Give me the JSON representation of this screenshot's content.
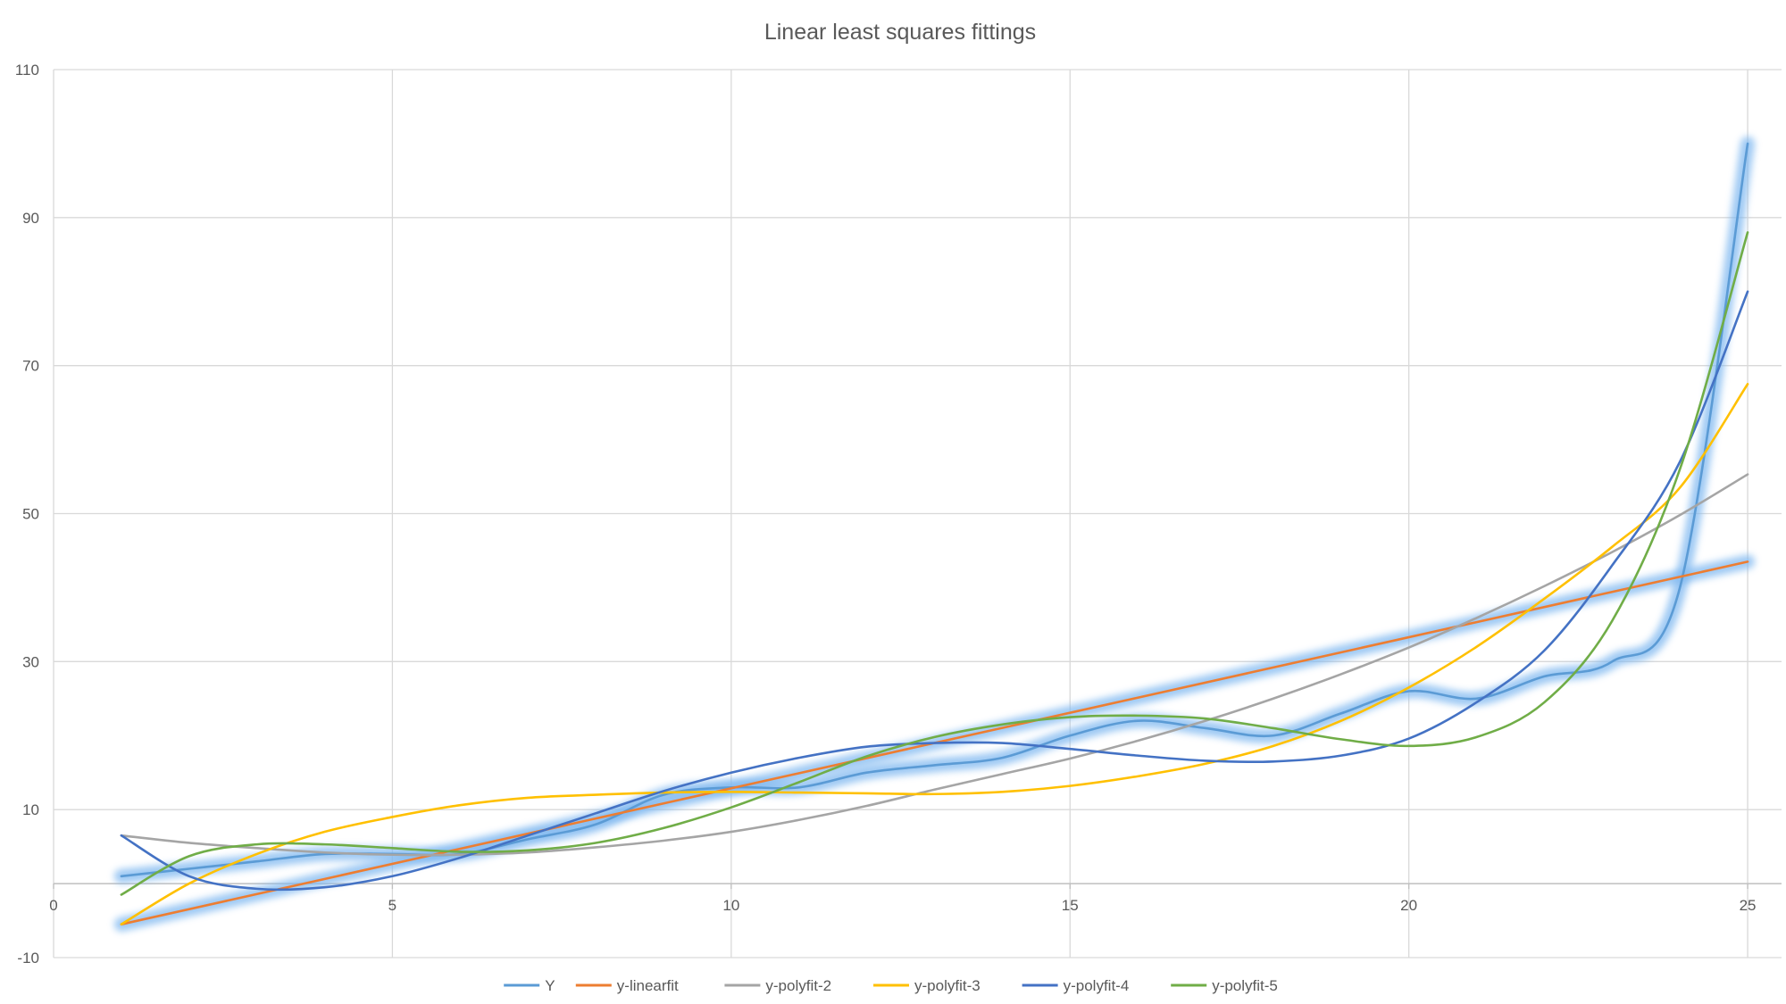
{
  "chart_data": {
    "type": "line",
    "title": "Linear least squares fittings",
    "xlabel": "",
    "ylabel": "",
    "xlim": [
      0,
      25.5
    ],
    "ylim": [
      -10,
      110
    ],
    "xticks": [
      0,
      5,
      10,
      15,
      20,
      25
    ],
    "yticks": [
      -10,
      10,
      30,
      50,
      70,
      90,
      110
    ],
    "grid": true,
    "legend_position": "bottom",
    "series": [
      {
        "name": "Y",
        "color": "#5B9BD5",
        "glow": true,
        "x": [
          1,
          2,
          3,
          4,
          5,
          6,
          7,
          8,
          9,
          10,
          11,
          12,
          13,
          14,
          15,
          16,
          17,
          18,
          19,
          20,
          21,
          22,
          23,
          24,
          25
        ],
        "y": [
          1,
          2,
          3,
          4,
          4,
          4,
          6,
          8,
          12,
          13,
          13,
          15,
          16,
          17,
          20,
          22,
          21,
          20,
          23,
          26,
          25,
          28,
          30,
          40,
          100
        ]
      },
      {
        "name": "y-linearfit",
        "color": "#ED7D31",
        "glow": true,
        "x": [
          1,
          25
        ],
        "y": [
          -5.5,
          43.5
        ]
      },
      {
        "name": "y-polyfit-2",
        "color": "#A5A5A5",
        "glow": false,
        "x": [
          1,
          2,
          3,
          4,
          5,
          6,
          7,
          8,
          9,
          10,
          11,
          12,
          13,
          14,
          15,
          16,
          17,
          18,
          19,
          20,
          21,
          22,
          23,
          24,
          25
        ],
        "y": [
          6.5,
          5.5,
          4.8,
          4.2,
          3.9,
          3.9,
          4.2,
          4.9,
          5.8,
          7,
          8.6,
          10.5,
          12.7,
          14.8,
          16.9,
          19.3,
          22,
          25,
          28.3,
          31.9,
          35.9,
          40.2,
          44.8,
          49.8,
          55.3
        ]
      },
      {
        "name": "y-polyfit-3",
        "color": "#FFC000",
        "glow": false,
        "x": [
          1,
          2,
          3,
          4,
          5,
          6,
          7,
          8,
          9,
          10,
          11,
          12,
          13,
          14,
          15,
          16,
          17,
          18,
          19,
          20,
          21,
          22,
          23,
          24,
          25
        ],
        "y": [
          -5.5,
          0,
          4,
          7,
          9,
          10.6,
          11.6,
          12,
          12.3,
          12.4,
          12.3,
          12.2,
          12.1,
          12.4,
          13.2,
          14.5,
          16.2,
          18.6,
          22,
          26.5,
          32,
          38.5,
          45.5,
          53.5,
          67.5
        ]
      },
      {
        "name": "y-polyfit-4",
        "color": "#4472C4",
        "glow": false,
        "x": [
          1,
          2,
          3,
          4,
          5,
          6,
          7,
          8,
          9,
          10,
          11,
          12,
          13,
          14,
          15,
          16,
          17,
          18,
          19,
          20,
          21,
          22,
          23,
          24,
          25
        ],
        "y": [
          6.5,
          1,
          -0.7,
          -0.5,
          1,
          3.5,
          6.5,
          9.5,
          12.5,
          15,
          17,
          18.5,
          19,
          19,
          18.2,
          17.3,
          16.6,
          16.5,
          17.3,
          19.6,
          24.5,
          31.5,
          43,
          57,
          80
        ]
      },
      {
        "name": "y-polyfit-5",
        "color": "#70AD47",
        "glow": false,
        "x": [
          1,
          2,
          3,
          4,
          5,
          6,
          7,
          8,
          9,
          10,
          11,
          12,
          13,
          14,
          15,
          16,
          17,
          18,
          19,
          20,
          21,
          22,
          23,
          24,
          25
        ],
        "y": [
          -1.5,
          3.7,
          5.3,
          5.3,
          4.8,
          4.3,
          4.5,
          5.5,
          7.5,
          10.3,
          13.7,
          17.2,
          19.8,
          21.5,
          22.5,
          22.7,
          22.3,
          21,
          19.5,
          18.6,
          19.8,
          24.5,
          35.5,
          56,
          88
        ]
      }
    ]
  }
}
